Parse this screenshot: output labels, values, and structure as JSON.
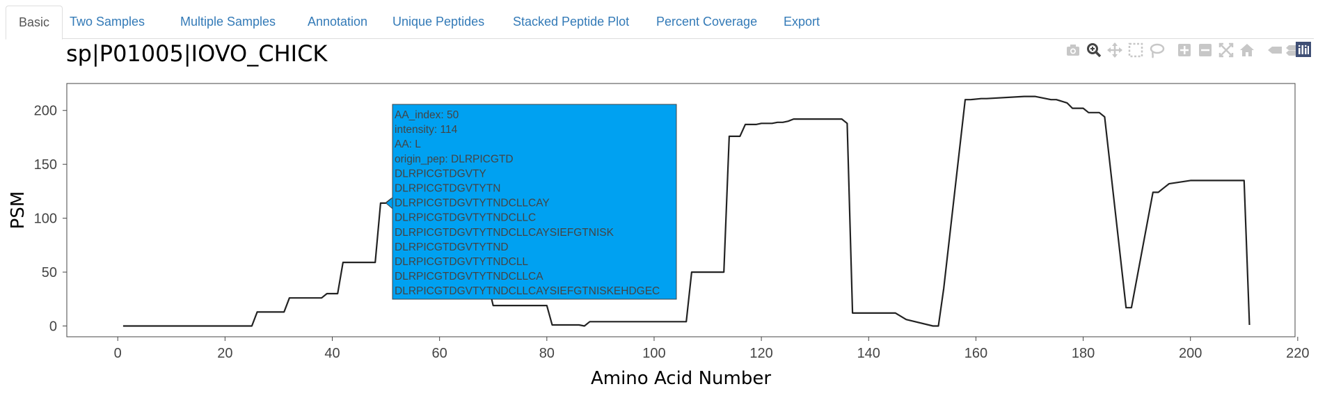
{
  "tabs": [
    {
      "label": "Basic",
      "active": true
    },
    {
      "label": "Two Samples"
    },
    {
      "label": "Multiple Samples"
    },
    {
      "label": "Annotation"
    },
    {
      "label": "Unique Peptides"
    },
    {
      "label": "Stacked Peptide Plot"
    },
    {
      "label": "Percent Coverage"
    },
    {
      "label": "Export"
    }
  ],
  "modebar": {
    "icons": [
      "camera-icon",
      "zoom-icon",
      "pan-icon",
      "box-select-icon",
      "lasso-select-icon",
      "zoom-in-icon",
      "zoom-out-icon",
      "autoscale-icon",
      "reset-axes-icon",
      "spike-lines-icon",
      "compare-hover-icon",
      "plotly-logo-icon"
    ],
    "active_color": "#444444",
    "inactive_color": "#c7c7c7"
  },
  "tooltip": {
    "lines": [
      "AA_index:  50",
      "intensity: 114",
      "AA: L",
      "origin_pep: DLRPICGTD",
      "DLRPICGTDGVTY",
      "DLRPICGTDGVTYTN",
      "DLRPICGTDGVTYTNDCLLCAY",
      "DLRPICGTDGVTYTNDCLLC",
      "DLRPICGTDGVTYTNDCLLCAYSIEFGTNISK",
      "DLRPICGTDGVTYTND",
      "DLRPICGTDGVTYTNDCLL",
      "DLRPICGTDGVTYTNDCLLCA",
      "DLRPICGTDGVTYTNDCLLCAYSIEFGTNISKEHDGEC"
    ],
    "bg_color": "#00a1f1",
    "anchor": {
      "x": 50,
      "y": 114
    }
  },
  "chart_data": {
    "type": "line",
    "title": "sp|P01005|IOVO_CHICK",
    "xlabel": "Amino Acid Number",
    "ylabel": "PSM",
    "xlim": [
      -9.5,
      219.5
    ],
    "ylim": [
      -10,
      225
    ],
    "xticks": [
      0,
      20,
      40,
      60,
      80,
      100,
      120,
      140,
      160,
      180,
      200,
      220
    ],
    "yticks": [
      0,
      50,
      100,
      150,
      200
    ],
    "grid": false,
    "line_color": "#222222",
    "x": [
      1,
      25,
      26,
      31,
      32,
      38,
      39,
      41,
      42,
      48,
      49,
      50,
      51,
      61,
      62,
      69,
      70,
      80,
      81,
      86,
      87,
      88,
      106,
      107,
      113,
      114,
      116,
      117,
      119,
      120,
      122,
      123,
      124,
      125,
      126,
      135,
      136,
      137,
      145,
      147,
      152,
      153,
      154,
      158,
      159,
      161,
      162,
      169,
      171,
      174,
      175,
      177,
      178,
      180,
      181,
      183,
      184,
      188,
      189,
      193,
      194,
      195,
      196,
      200,
      201,
      210,
      211
    ],
    "y": [
      0,
      0,
      13,
      13,
      26,
      26,
      30,
      30,
      59,
      59,
      114,
      114,
      118,
      118,
      40,
      40,
      19,
      19,
      1,
      1,
      0,
      4,
      4,
      50,
      50,
      176,
      176,
      187,
      187,
      188,
      188,
      189,
      189,
      190,
      192,
      192,
      188,
      12,
      12,
      6,
      0,
      0,
      35,
      210,
      210,
      211,
      211,
      213,
      213,
      210,
      210,
      207,
      202,
      202,
      198,
      198,
      194,
      17,
      17,
      124,
      124,
      128,
      132,
      135,
      135,
      135,
      1
    ]
  }
}
